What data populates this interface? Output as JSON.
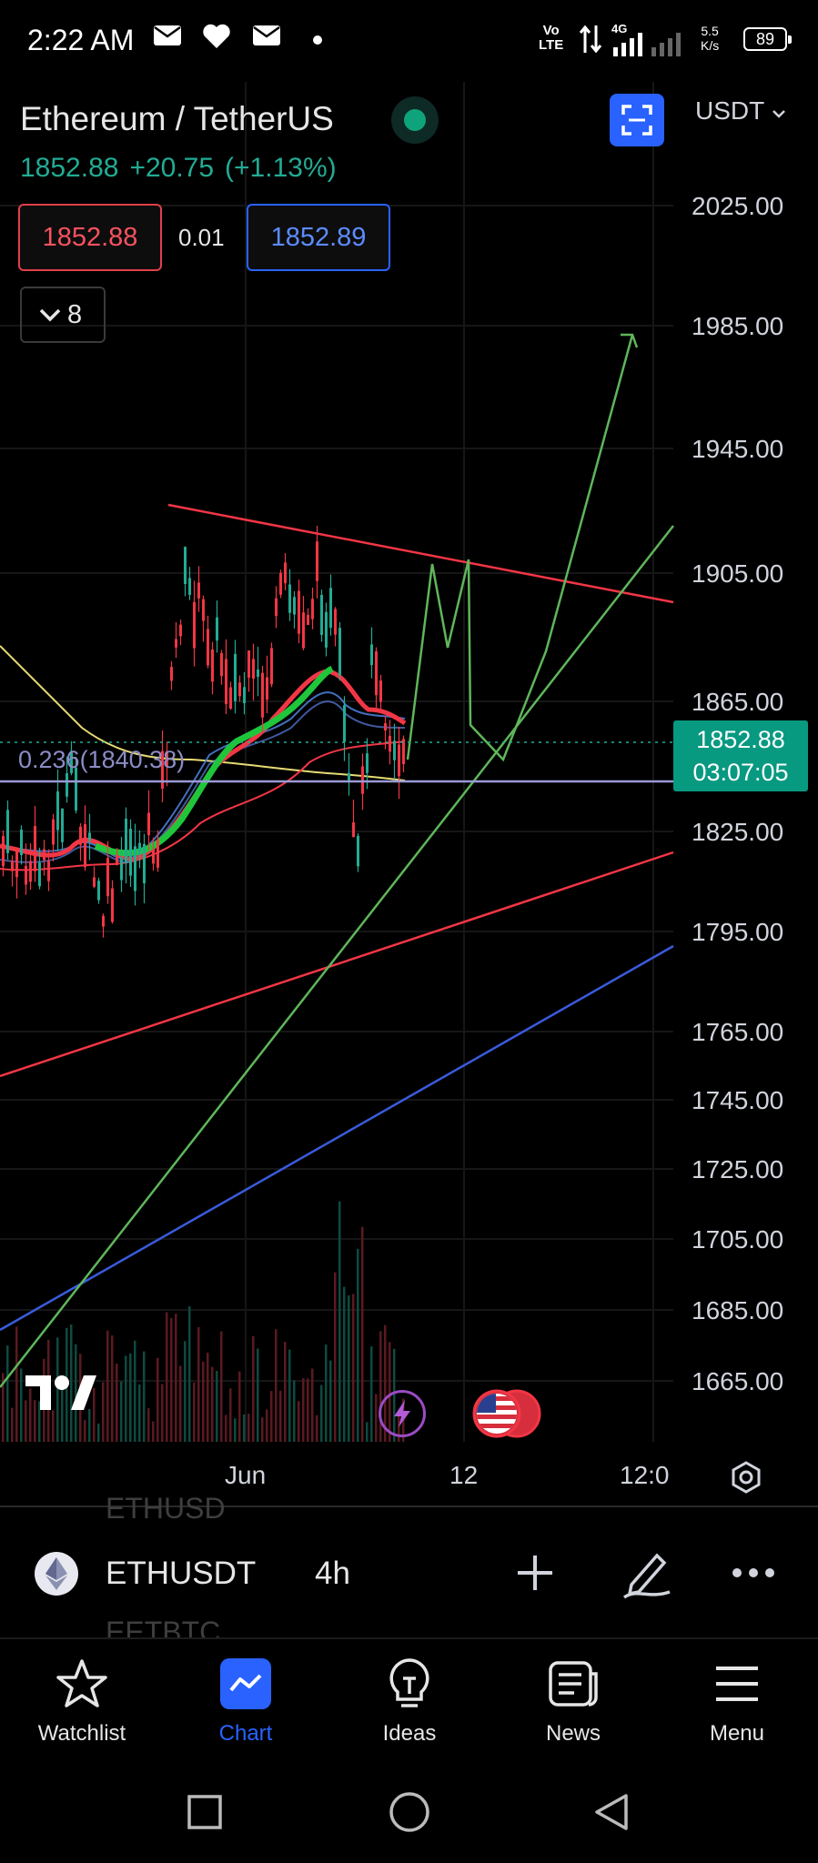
{
  "status_bar": {
    "time": "2:22 AM",
    "network_lines": [
      "Vo",
      "LTE"
    ],
    "network_type": "4G",
    "speed_lines": [
      "5.5",
      "K/s"
    ],
    "battery": "89",
    "icons": [
      "mail-icon",
      "heart-icon",
      "mail-icon",
      "dot-icon",
      "signal-icon"
    ]
  },
  "header": {
    "title": "Ethereum / TetherUS",
    "last_price": "1852.88",
    "change": "+20.75",
    "change_pct": "(+1.13%)",
    "bid": "1852.88",
    "spread": "0.01",
    "ask": "1852.89",
    "indicators_count": "8",
    "currency": "USDT"
  },
  "colors": {
    "up": "#22ab94",
    "down": "#f7525f",
    "accent": "#2962ff",
    "trend_red": "#f23645",
    "trend_green": "#5fb65a",
    "trend_blue": "#3a5bdc",
    "fib_line": "#8c8cc6"
  },
  "chart": {
    "axis_labels": [
      "2025.00",
      "1985.00",
      "1945.00",
      "1905.00",
      "1865.00",
      "1825.00",
      "1795.00",
      "1765.00",
      "1745.00",
      "1725.00",
      "1705.00",
      "1685.00",
      "1665.00"
    ],
    "last_price_tag": "1852.88",
    "countdown": "03:07:05",
    "fib_label": "0.236(1840.38)",
    "time_labels": [
      "Jun",
      "12",
      "12:0"
    ]
  },
  "symbol_bar": {
    "ticker": "ETHUSDT",
    "interval": "4h",
    "ghost_above": "ETHUSD",
    "ghost_below": "EETBTC"
  },
  "bottom_nav": [
    {
      "label": "Watchlist",
      "icon": "star-icon"
    },
    {
      "label": "Chart",
      "icon": "chart-icon"
    },
    {
      "label": "Ideas",
      "icon": "lightbulb-icon"
    },
    {
      "label": "News",
      "icon": "news-icon"
    },
    {
      "label": "Menu",
      "icon": "menu-icon"
    }
  ]
}
